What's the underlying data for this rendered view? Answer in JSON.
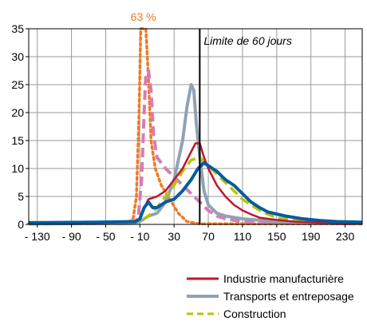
{
  "chart_data": {
    "type": "line",
    "title": "",
    "xlabel": "",
    "ylabel": "",
    "xlim": [
      -140,
      250
    ],
    "ylim": [
      0,
      35
    ],
    "grid": true,
    "x_ticks": [
      "- 130",
      "- 90",
      "- 50",
      "- 10",
      "30",
      "70",
      "110",
      "150",
      "190",
      "230"
    ],
    "x_tick_values": [
      -130,
      -90,
      -50,
      -10,
      30,
      70,
      110,
      150,
      190,
      230
    ],
    "y_ticks": [
      "0",
      "5",
      "10",
      "15",
      "20",
      "25",
      "30",
      "35"
    ],
    "y_tick_values": [
      0,
      5,
      10,
      15,
      20,
      25,
      30,
      35
    ],
    "annotations": {
      "limit_label": "Limite de 60 jours",
      "limit_x": 60,
      "peak_label": "63 %"
    },
    "legend_position": "bottom-right",
    "series": [
      {
        "name": "Industrie manufacturière",
        "color": "#c0162c",
        "dash": "solid",
        "points": [
          [
            -140,
            0.2
          ],
          [
            -50,
            0.3
          ],
          [
            -15,
            0.5
          ],
          [
            -10,
            1
          ],
          [
            -5,
            3
          ],
          [
            0,
            4.5
          ],
          [
            10,
            5
          ],
          [
            20,
            6
          ],
          [
            30,
            8
          ],
          [
            40,
            10
          ],
          [
            50,
            13
          ],
          [
            55,
            14.5
          ],
          [
            60,
            14.5
          ],
          [
            65,
            12
          ],
          [
            70,
            10
          ],
          [
            80,
            7
          ],
          [
            90,
            5
          ],
          [
            100,
            3.5
          ],
          [
            110,
            2.5
          ],
          [
            120,
            1.8
          ],
          [
            130,
            1.2
          ],
          [
            150,
            0.8
          ],
          [
            170,
            0.5
          ],
          [
            200,
            0.3
          ],
          [
            250,
            0.2
          ]
        ]
      },
      {
        "name": "Transports et entreposage",
        "color": "#8ea3b5",
        "dash": "solid",
        "points": [
          [
            -140,
            0.1
          ],
          [
            -20,
            0.2
          ],
          [
            -10,
            0.5
          ],
          [
            0,
            1.5
          ],
          [
            10,
            2
          ],
          [
            20,
            4
          ],
          [
            30,
            8
          ],
          [
            40,
            15
          ],
          [
            45,
            21
          ],
          [
            50,
            25
          ],
          [
            53,
            24
          ],
          [
            56,
            18
          ],
          [
            60,
            12
          ],
          [
            65,
            6
          ],
          [
            70,
            3.5
          ],
          [
            80,
            2
          ],
          [
            90,
            1.5
          ],
          [
            110,
            1
          ],
          [
            150,
            0.5
          ],
          [
            200,
            0.3
          ],
          [
            250,
            0.2
          ]
        ]
      },
      {
        "name": "Construction",
        "color": "#b8c400",
        "dash": "dashed",
        "points": [
          [
            -140,
            0.2
          ],
          [
            -40,
            0.3
          ],
          [
            -10,
            0.5
          ],
          [
            0,
            1.5
          ],
          [
            10,
            3
          ],
          [
            20,
            5
          ],
          [
            30,
            7
          ],
          [
            40,
            9.5
          ],
          [
            50,
            11.5
          ],
          [
            60,
            12
          ],
          [
            70,
            10.5
          ],
          [
            80,
            9
          ],
          [
            90,
            7.5
          ],
          [
            100,
            6
          ],
          [
            110,
            4.5
          ],
          [
            120,
            3.5
          ],
          [
            130,
            2.5
          ],
          [
            140,
            1.8
          ],
          [
            150,
            1.2
          ],
          [
            170,
            0.7
          ],
          [
            200,
            0.4
          ],
          [
            250,
            0.2
          ]
        ]
      },
      {
        "name": "",
        "color": "#005b9f",
        "dash": "solid",
        "points": [
          [
            -140,
            0.3
          ],
          [
            -60,
            0.4
          ],
          [
            -15,
            0.5
          ],
          [
            -10,
            1
          ],
          [
            -5,
            3
          ],
          [
            0,
            4
          ],
          [
            5,
            3
          ],
          [
            10,
            3
          ],
          [
            20,
            4
          ],
          [
            30,
            4.5
          ],
          [
            40,
            6
          ],
          [
            50,
            8
          ],
          [
            58,
            10
          ],
          [
            65,
            11
          ],
          [
            70,
            10.5
          ],
          [
            80,
            9.5
          ],
          [
            90,
            8
          ],
          [
            100,
            7
          ],
          [
            110,
            5.5
          ],
          [
            120,
            4
          ],
          [
            130,
            3
          ],
          [
            140,
            2.2
          ],
          [
            160,
            1.5
          ],
          [
            180,
            1
          ],
          [
            200,
            0.7
          ],
          [
            220,
            0.5
          ],
          [
            250,
            0.4
          ]
        ]
      },
      {
        "name": "",
        "color": "#d97bb3",
        "dash": "dashed",
        "points": [
          [
            -140,
            0.1
          ],
          [
            -20,
            0.2
          ],
          [
            -12,
            1
          ],
          [
            -8,
            8
          ],
          [
            -5,
            20
          ],
          [
            -3,
            27
          ],
          [
            0,
            27.5
          ],
          [
            3,
            24
          ],
          [
            6,
            16
          ],
          [
            10,
            12
          ],
          [
            20,
            10
          ],
          [
            30,
            8.5
          ],
          [
            40,
            7
          ],
          [
            50,
            5.5
          ],
          [
            60,
            4
          ],
          [
            70,
            2.5
          ],
          [
            80,
            1.5
          ],
          [
            90,
            1
          ],
          [
            110,
            0.5
          ],
          [
            150,
            0.3
          ],
          [
            250,
            0.1
          ]
        ]
      },
      {
        "name": "",
        "color": "#f07a22",
        "dash": "dotted",
        "points": [
          [
            -140,
            0.1
          ],
          [
            -25,
            0.2
          ],
          [
            -18,
            1
          ],
          [
            -14,
            5
          ],
          [
            -11,
            20
          ],
          [
            -9,
            35
          ],
          [
            -3,
            35
          ],
          [
            0,
            26
          ],
          [
            3,
            15
          ],
          [
            8,
            10
          ],
          [
            15,
            7
          ],
          [
            25,
            4.5
          ],
          [
            35,
            2
          ],
          [
            45,
            0.5
          ],
          [
            60,
            0.1
          ],
          [
            250,
            0.1
          ]
        ]
      }
    ]
  }
}
